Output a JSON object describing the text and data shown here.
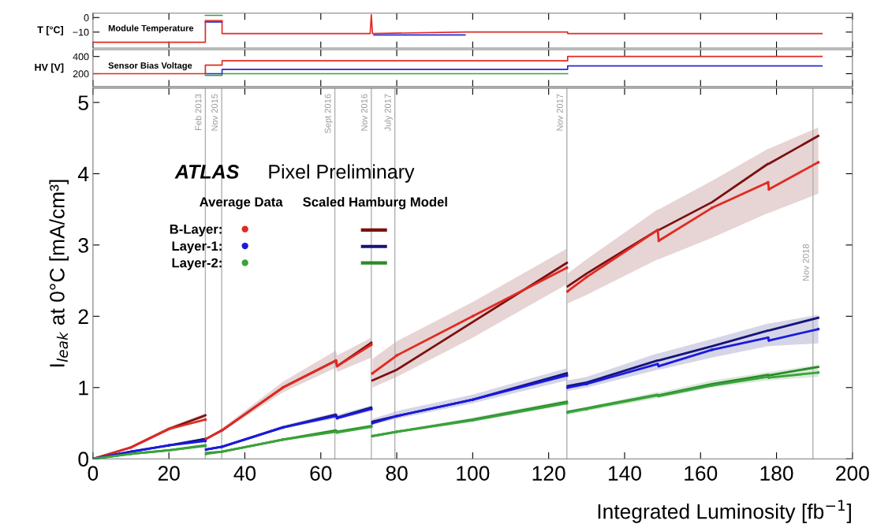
{
  "chart_data": [
    {
      "type": "line",
      "ylabel": "T [°C]",
      "annotations": [
        "Module Temperature"
      ],
      "xlim": [
        0,
        200
      ],
      "xticks": [
        0,
        20,
        40,
        60,
        80,
        100,
        120,
        140,
        160,
        180,
        200
      ],
      "ylim": [
        -21,
        3
      ],
      "yticks": [
        0,
        {
          "value": -10,
          "label": "−10"
        }
      ],
      "tick_labels": "y",
      "series": [
        {
          "color": "#3aa33a",
          "x": [
            29.6,
            34
          ],
          "values": [
            1.5,
            1.5
          ]
        },
        {
          "color": "#2a2ad8",
          "x": [
            29.6,
            34,
            34.1,
            74,
            98
          ],
          "values": [
            -3,
            -3,
            null,
            -12,
            -12
          ]
        },
        {
          "color": "#e02a22",
          "x": [
            0,
            29.6,
            29.6,
            34,
            34,
            73,
            73.3,
            73.6,
            98,
            125,
            125,
            192
          ],
          "values": [
            -17,
            -17,
            -2,
            -2,
            -11,
            -11,
            2,
            -11,
            -10,
            -10,
            -11,
            -11
          ]
        }
      ]
    },
    {
      "type": "line",
      "ylabel": "HV [V]",
      "annotations": [
        "Sensor Bias Voltage"
      ],
      "xlim": [
        0,
        200
      ],
      "xticks": [
        0,
        20,
        40,
        60,
        80,
        100,
        120,
        140,
        160,
        180,
        200
      ],
      "ylim": [
        50,
        480
      ],
      "yticks": [
        200,
        400
      ],
      "tick_labels": "y",
      "series": [
        {
          "color": "#3aa33a",
          "x": [
            29.6,
            34,
            34,
            125
          ],
          "values": [
            180,
            180,
            200,
            200
          ]
        },
        {
          "color": "#2a2ad8",
          "x": [
            29.6,
            34,
            34,
            125,
            125,
            192
          ],
          "values": [
            200,
            200,
            250,
            250,
            290,
            290
          ]
        },
        {
          "color": "#e02a22",
          "x": [
            0,
            29.6,
            29.6,
            34,
            34,
            125,
            125,
            192
          ],
          "values": [
            200,
            200,
            300,
            300,
            350,
            350,
            400,
            400
          ]
        }
      ]
    },
    {
      "type": "line",
      "xlabel": "Integrated Luminosity [fb$^{−1}$]",
      "ylabel": "I$_{leak}$ at 0°C [mA/cm³]",
      "annotations": [
        "ATLAS",
        "Pixel Preliminary",
        "Average Data",
        "Scaled Hamburg Model"
      ],
      "xlim": [
        0,
        200
      ],
      "xticks": [
        0,
        20,
        40,
        60,
        80,
        100,
        120,
        140,
        160,
        180,
        200
      ],
      "ylim": [
        0,
        5.2
      ],
      "yticks": [
        0,
        1,
        2,
        3,
        4,
        5
      ],
      "legend": "top left",
      "grid": false,
      "x": [
        0,
        10,
        20,
        29.6,
        29.7,
        29.8,
        34,
        50,
        64,
        64.3,
        73.3,
        73.45,
        73.6,
        80,
        100,
        124.8,
        124.9,
        125,
        130,
        148.7,
        149,
        163,
        177.8,
        178,
        191
      ],
      "ref_lines": [
        {
          "axis": "x",
          "value": 29.6,
          "label": "Feb 2013",
          "color": "#b0b0b0"
        },
        {
          "axis": "x",
          "value": 33.9,
          "label": "Nov 2015",
          "color": "#b0b0b0"
        },
        {
          "axis": "x",
          "value": 63.7,
          "label": "Sept 2016",
          "color": "#b0b0b0"
        },
        {
          "axis": "x",
          "value": 73.3,
          "label": "Nov 2016",
          "color": "#b0b0b0"
        },
        {
          "axis": "x",
          "value": 79.5,
          "label": "July 2017",
          "color": "#b0b0b0"
        },
        {
          "axis": "x",
          "value": 124.8,
          "label": "Nov 2017",
          "color": "#b0b0b0"
        },
        {
          "axis": "x",
          "value": 189.6,
          "label": "Nov 2018",
          "color": "#b0b0b0"
        }
      ],
      "series": [
        {
          "color": "#2a8a2a",
          "values": [
            0,
            0.07,
            0.12,
            0.19,
            null,
            0.08,
            0.1,
            0.27,
            0.4,
            0.38,
            0.46,
            null,
            0.32,
            0.38,
            0.55,
            0.8,
            null,
            0.66,
            0.71,
            0.9,
            0.89,
            1.05,
            1.18,
            1.17,
            1.29
          ],
          "lower": [
            0,
            0.06,
            0.11,
            0.17,
            null,
            0.07,
            0.09,
            0.25,
            0.37,
            0.36,
            0.43,
            null,
            0.3,
            0.36,
            0.52,
            0.76,
            null,
            0.62,
            0.67,
            0.85,
            0.85,
            1.0,
            1.1,
            1.1,
            1.15
          ],
          "upper": [
            0,
            0.08,
            0.13,
            0.19,
            null,
            0.08,
            0.11,
            0.29,
            0.42,
            0.4,
            0.48,
            null,
            0.34,
            0.4,
            0.58,
            0.83,
            null,
            0.68,
            0.73,
            0.94,
            0.93,
            1.1,
            1.22,
            1.22,
            1.32
          ]
        },
        {
          "color": "#14147a",
          "values": [
            0,
            0.1,
            0.19,
            0.28,
            null,
            0.13,
            0.17,
            0.44,
            0.62,
            0.58,
            0.72,
            null,
            0.52,
            0.6,
            0.83,
            1.2,
            null,
            1.02,
            1.07,
            1.38,
            1.38,
            1.58,
            1.8,
            1.8,
            1.98
          ],
          "lower": [
            0,
            0.09,
            0.18,
            0.25,
            null,
            0.12,
            0.16,
            0.42,
            0.57,
            0.55,
            0.67,
            null,
            0.48,
            0.56,
            0.78,
            1.1,
            null,
            0.95,
            1.0,
            1.25,
            1.25,
            1.42,
            1.58,
            1.58,
            1.62
          ],
          "upper": [
            0,
            0.11,
            0.2,
            0.29,
            null,
            0.14,
            0.18,
            0.47,
            0.65,
            0.62,
            0.75,
            null,
            0.56,
            0.67,
            0.9,
            1.27,
            null,
            1.1,
            1.15,
            1.48,
            1.48,
            1.68,
            1.9,
            1.9,
            2.02
          ]
        },
        {
          "color": "#7a1010",
          "values": [
            0,
            0.16,
            0.42,
            0.61,
            null,
            0.28,
            0.4,
            1.0,
            1.38,
            1.3,
            1.63,
            null,
            1.1,
            1.25,
            1.92,
            2.75,
            null,
            2.42,
            2.6,
            3.21,
            3.21,
            3.6,
            4.14,
            4.14,
            4.53
          ],
          "lower": [
            0,
            0.15,
            0.39,
            0.55,
            null,
            0.27,
            0.38,
            0.93,
            1.28,
            1.22,
            1.42,
            null,
            1.0,
            1.15,
            1.7,
            2.45,
            null,
            2.18,
            2.3,
            2.8,
            2.8,
            3.1,
            3.45,
            3.45,
            3.72
          ],
          "upper": [
            0,
            0.18,
            0.45,
            0.64,
            null,
            0.29,
            0.43,
            1.08,
            1.52,
            1.45,
            1.7,
            null,
            1.4,
            1.65,
            2.2,
            2.95,
            null,
            2.6,
            2.8,
            3.5,
            3.5,
            3.9,
            4.35,
            4.35,
            4.65
          ]
        },
        {
          "name": "B-Layer:",
          "color": "#e02a22",
          "marker": "circle",
          "values": [
            0,
            0.16,
            0.42,
            0.55,
            null,
            0.28,
            0.4,
            1.0,
            1.38,
            1.3,
            1.6,
            null,
            1.2,
            1.45,
            2.0,
            2.68,
            null,
            2.35,
            2.55,
            3.21,
            3.06,
            3.52,
            3.88,
            3.78,
            4.16
          ]
        },
        {
          "name": "Layer-1:",
          "color": "#1a1ae0",
          "marker": "circle",
          "values": [
            0,
            0.1,
            0.19,
            0.25,
            null,
            0.13,
            0.17,
            0.44,
            0.6,
            0.57,
            0.7,
            null,
            0.5,
            0.6,
            0.83,
            1.17,
            null,
            1.0,
            1.05,
            1.33,
            1.3,
            1.53,
            1.7,
            1.66,
            1.82
          ]
        },
        {
          "name": "Layer-2:",
          "color": "#3aa33a",
          "marker": "circle",
          "values": [
            0,
            0.07,
            0.12,
            0.18,
            null,
            0.07,
            0.1,
            0.27,
            0.38,
            0.37,
            0.45,
            null,
            0.32,
            0.38,
            0.54,
            0.78,
            null,
            0.65,
            0.7,
            0.89,
            0.88,
            1.03,
            1.15,
            1.14,
            1.21
          ]
        }
      ]
    }
  ]
}
